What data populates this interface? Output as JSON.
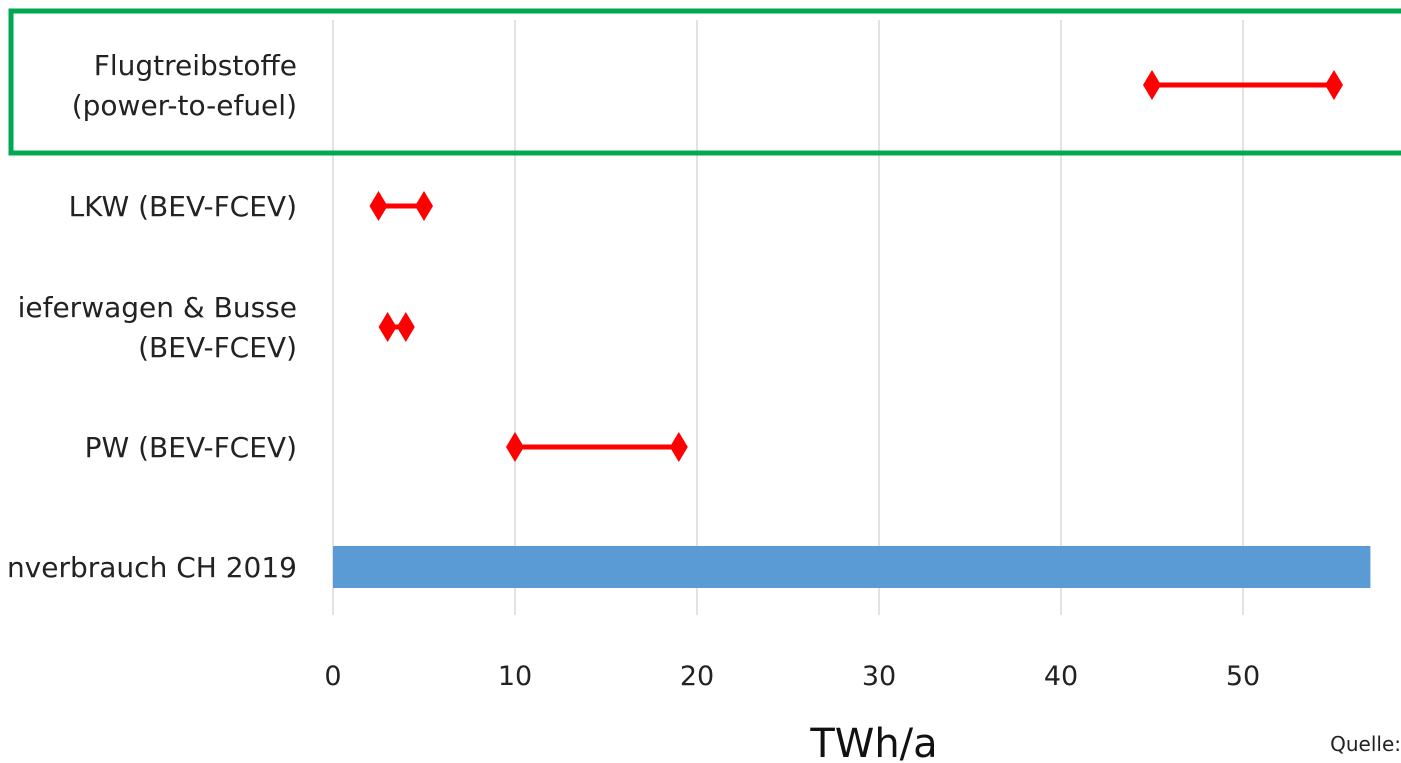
{
  "chart_data": {
    "type": "range",
    "xlabel": "TWh/a",
    "xlim": [
      0,
      57
    ],
    "x_ticks": [
      "0",
      "10",
      "20",
      "30",
      "40",
      "50"
    ],
    "grid": true,
    "categories": [
      {
        "label_lines": [
          "Flugtreibstoffe",
          "(power-to-efuel)"
        ],
        "kind": "range",
        "min": 45,
        "max": 55,
        "highlighted": true
      },
      {
        "label_lines": [
          "LKW (BEV-FCEV)"
        ],
        "kind": "range",
        "min": 2.5,
        "max": 5
      },
      {
        "label_lines": [
          "ieferwagen & Busse",
          "(BEV-FCEV)"
        ],
        "kind": "range",
        "min": 3,
        "max": 4
      },
      {
        "label_lines": [
          "PW (BEV-FCEV)"
        ],
        "kind": "range",
        "min": 10,
        "max": 19
      },
      {
        "label_lines": [
          "nverbrauch CH 2019"
        ],
        "kind": "bar",
        "value": 57
      }
    ],
    "colors": {
      "range_marker": "#ff0000",
      "bar": "#5b9bd5",
      "highlight_box": "#00a84f",
      "grid": "#d9d9d9"
    }
  },
  "source_label": "Quelle:"
}
